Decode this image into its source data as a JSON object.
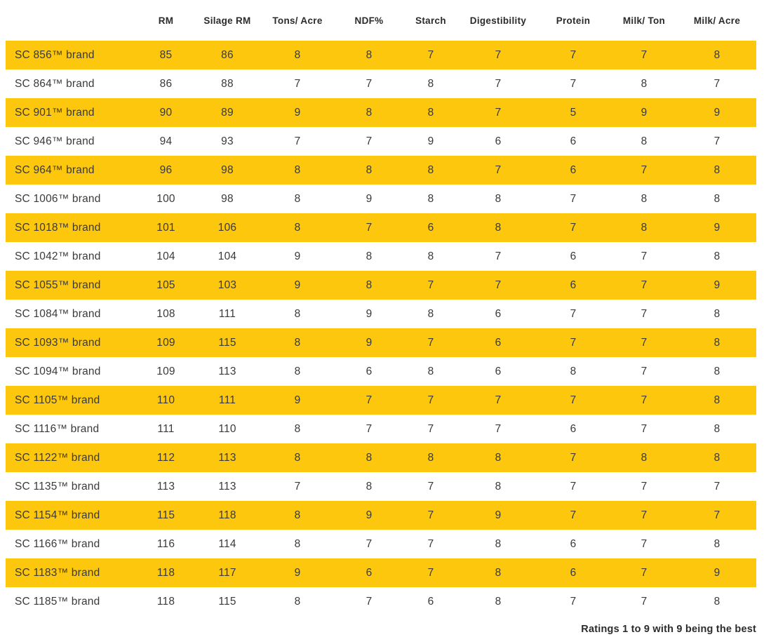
{
  "colors": {
    "highlight_yellow": "#FDC70D",
    "body_text": "#3A3A3A",
    "header_text": "#2D2A2B",
    "page_background": "#FFFFFF"
  },
  "footnote": "Ratings 1 to 9 with 9 being the best",
  "chart_data": {
    "type": "table",
    "columns": [
      "",
      "RM",
      "Silage RM",
      "Tons/ Acre",
      "NDF%",
      "Starch",
      "Digestibility",
      "Protein",
      "Milk/ Ton",
      "Milk/ Acre"
    ],
    "rows": [
      {
        "brand": "SC 856™ brand",
        "values": [
          85,
          86,
          8,
          8,
          7,
          7,
          7,
          7,
          8
        ],
        "highlighted": true
      },
      {
        "brand": "SC 864™ brand",
        "values": [
          86,
          88,
          7,
          7,
          8,
          7,
          7,
          8,
          7
        ],
        "highlighted": false
      },
      {
        "brand": "SC 901™ brand",
        "values": [
          90,
          89,
          9,
          8,
          8,
          7,
          5,
          9,
          9
        ],
        "highlighted": true
      },
      {
        "brand": "SC 946™ brand",
        "values": [
          94,
          93,
          7,
          7,
          9,
          6,
          6,
          8,
          7
        ],
        "highlighted": false
      },
      {
        "brand": "SC 964™ brand",
        "values": [
          96,
          98,
          8,
          8,
          8,
          7,
          6,
          7,
          8
        ],
        "highlighted": true
      },
      {
        "brand": "SC 1006™ brand",
        "values": [
          100,
          98,
          8,
          9,
          8,
          8,
          7,
          8,
          8
        ],
        "highlighted": false
      },
      {
        "brand": "SC 1018™ brand",
        "values": [
          101,
          106,
          8,
          7,
          6,
          8,
          7,
          8,
          9
        ],
        "highlighted": true
      },
      {
        "brand": "SC 1042™ brand",
        "values": [
          104,
          104,
          9,
          8,
          8,
          7,
          6,
          7,
          8
        ],
        "highlighted": false
      },
      {
        "brand": "SC 1055™ brand",
        "values": [
          105,
          103,
          9,
          8,
          7,
          7,
          6,
          7,
          9
        ],
        "highlighted": true
      },
      {
        "brand": "SC 1084™ brand",
        "values": [
          108,
          111,
          8,
          9,
          8,
          6,
          7,
          7,
          8
        ],
        "highlighted": false
      },
      {
        "brand": "SC 1093™ brand",
        "values": [
          109,
          115,
          8,
          9,
          7,
          6,
          7,
          7,
          8
        ],
        "highlighted": true
      },
      {
        "brand": "SC 1094™ brand",
        "values": [
          109,
          113,
          8,
          6,
          8,
          6,
          8,
          7,
          8
        ],
        "highlighted": false
      },
      {
        "brand": "SC 1105™ brand",
        "values": [
          110,
          111,
          9,
          7,
          7,
          7,
          7,
          7,
          8
        ],
        "highlighted": true
      },
      {
        "brand": "SC 1116™ brand",
        "values": [
          111,
          110,
          8,
          7,
          7,
          7,
          6,
          7,
          8
        ],
        "highlighted": false
      },
      {
        "brand": "SC 1122™ brand",
        "values": [
          112,
          113,
          8,
          8,
          8,
          8,
          7,
          8,
          8
        ],
        "highlighted": true
      },
      {
        "brand": "SC 1135™ brand",
        "values": [
          113,
          113,
          7,
          8,
          7,
          8,
          7,
          7,
          7
        ],
        "highlighted": false
      },
      {
        "brand": "SC 1154™ brand",
        "values": [
          115,
          118,
          8,
          9,
          7,
          9,
          7,
          7,
          7
        ],
        "highlighted": true
      },
      {
        "brand": "SC 1166™ brand",
        "values": [
          116,
          114,
          8,
          7,
          7,
          8,
          6,
          7,
          8
        ],
        "highlighted": false
      },
      {
        "brand": "SC 1183™ brand",
        "values": [
          118,
          117,
          9,
          6,
          7,
          8,
          6,
          7,
          9
        ],
        "highlighted": true
      },
      {
        "brand": "SC 1185™ brand",
        "values": [
          118,
          115,
          8,
          7,
          6,
          8,
          7,
          7,
          8
        ],
        "highlighted": false
      }
    ],
    "footnote": "Ratings 1 to 9 with 9 being the best",
    "layout": {
      "highlight_style": "alternating rows starting with first data row",
      "legend_position": "none",
      "grid": "off"
    }
  }
}
